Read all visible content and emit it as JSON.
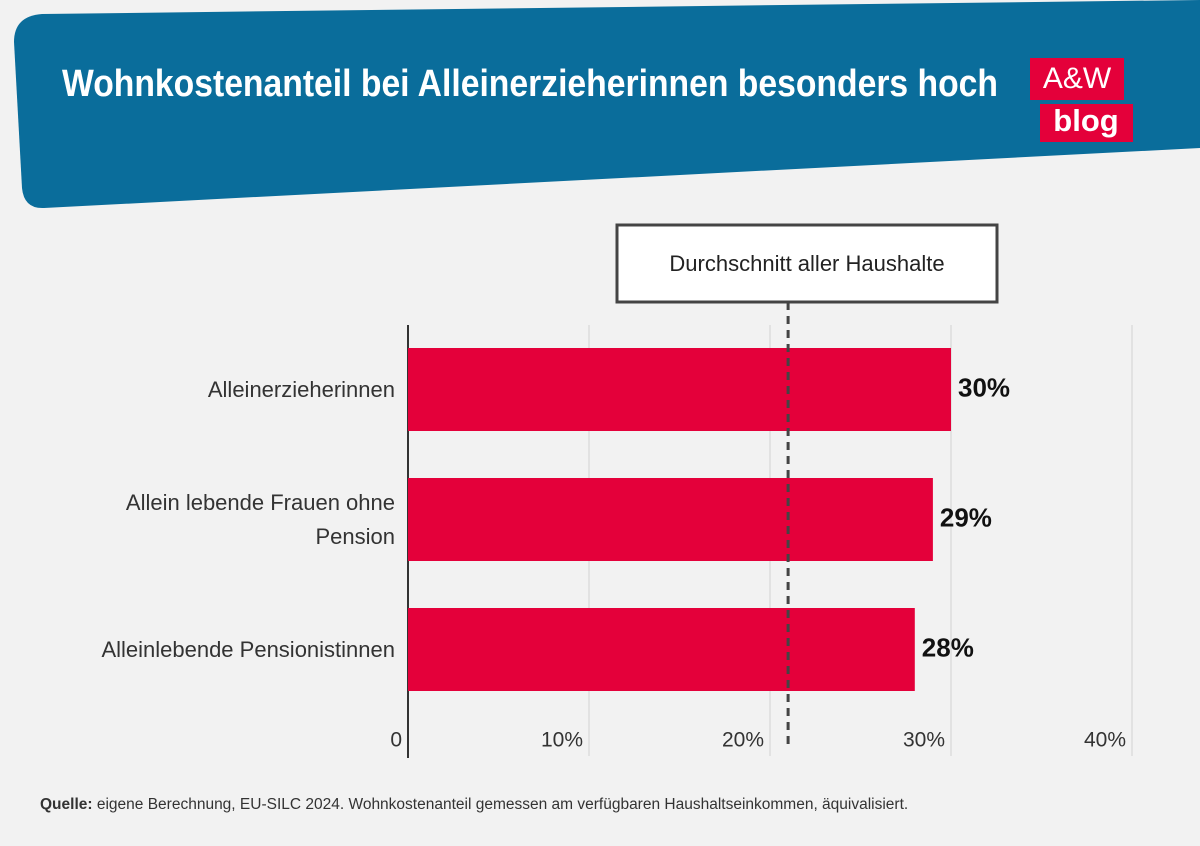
{
  "chart_data": {
    "type": "bar",
    "orientation": "horizontal",
    "title": "Wohnkostenanteil bei Alleinerzieherinnen besonders hoch",
    "logo": {
      "top": "A&W",
      "bottom": "blog"
    },
    "categories": [
      "Alleinerzieherinnen",
      "Allein lebende Frauen ohne Pension",
      "Alleinlebende Pensionistinnen"
    ],
    "values": [
      30,
      29,
      28
    ],
    "value_labels": [
      "30%",
      "29%",
      "28%"
    ],
    "color": "#e4003a",
    "xlim": [
      0,
      40
    ],
    "xticks": [
      0,
      {
        "value": 10,
        "label": "10%"
      },
      {
        "value": 20,
        "label": "20%"
      },
      {
        "value": 30,
        "label": "30%"
      },
      {
        "value": 40,
        "label": "40%"
      }
    ],
    "grid": true,
    "reference_line": {
      "label": "Durchschnitt aller Haushalte",
      "value": 21
    },
    "source_label": "Quelle:",
    "source": "eigene Berechnung, EU-SILC 2024. Wohnkostenanteil gemessen am verfügbaren Haushaltseinkommen, äquivalisiert."
  }
}
